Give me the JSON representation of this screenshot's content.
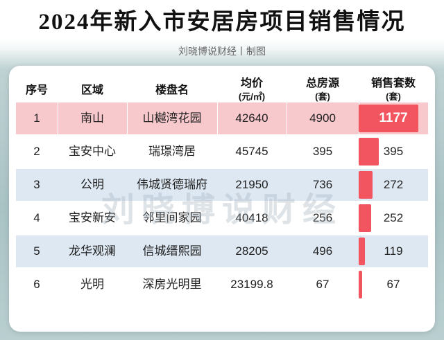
{
  "title": "2024年新入市安居房项目销售情况",
  "subtitle": "刘晓博说财经丨制图",
  "watermark": "刘晓博说财经",
  "colors": {
    "highlight_row": "#f7c8cc",
    "stripe_row": "#dde8f3",
    "bar": "#f2555f"
  },
  "headers": {
    "index": "序号",
    "district": "区域",
    "project": "楼盘名",
    "avg_price": "均价",
    "avg_price_unit": "(元/㎡)",
    "total": "总房源",
    "total_unit": "(套)",
    "sold": "销售套数",
    "sold_unit": "(套)"
  },
  "rows": [
    {
      "index": "1",
      "district": "南山",
      "project": "山樾湾花园",
      "avg_price": "42640",
      "total": "4900",
      "sold": "1177",
      "sold_value": 1177
    },
    {
      "index": "2",
      "district": "宝安中心",
      "project": "瑞璟湾居",
      "avg_price": "45745",
      "total": "395",
      "sold": "395",
      "sold_value": 395
    },
    {
      "index": "3",
      "district": "公明",
      "project": "伟城贤德瑞府",
      "avg_price": "21950",
      "total": "736",
      "sold": "272",
      "sold_value": 272
    },
    {
      "index": "4",
      "district": "宝安新安",
      "project": "邻里间家园",
      "avg_price": "40418",
      "total": "256",
      "sold": "252",
      "sold_value": 252
    },
    {
      "index": "5",
      "district": "龙华观澜",
      "project": "信城缙熙园",
      "avg_price": "28205",
      "total": "496",
      "sold": "119",
      "sold_value": 119
    },
    {
      "index": "6",
      "district": "光明",
      "project": "深房光明里",
      "avg_price": "23199.8",
      "total": "67",
      "sold": "67",
      "sold_value": 67
    }
  ]
}
